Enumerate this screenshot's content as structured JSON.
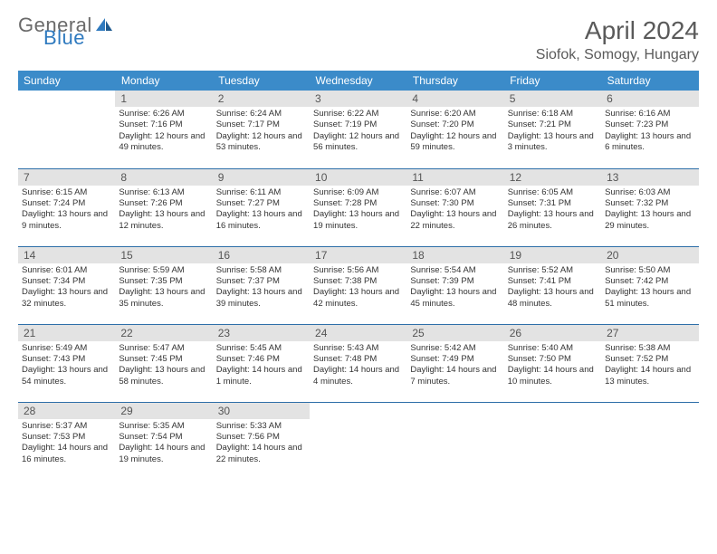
{
  "logo": {
    "word1": "General",
    "word2": "Blue"
  },
  "title": "April 2024",
  "location": "Siofok, Somogy, Hungary",
  "colors": {
    "header_bg": "#3b8bc9",
    "header_text": "#ffffff",
    "daynum_bg": "#e3e3e3",
    "daynum_text": "#555555",
    "border": "#2d6ea8",
    "logo_gray": "#6a6a6a",
    "logo_blue": "#2f7abf",
    "title_color": "#5a5a5a",
    "body_text": "#333333"
  },
  "weekdays": [
    "Sunday",
    "Monday",
    "Tuesday",
    "Wednesday",
    "Thursday",
    "Friday",
    "Saturday"
  ],
  "weeks": [
    [
      null,
      {
        "n": "1",
        "sr": "Sunrise: 6:26 AM",
        "ss": "Sunset: 7:16 PM",
        "dl": "Daylight: 12 hours and 49 minutes."
      },
      {
        "n": "2",
        "sr": "Sunrise: 6:24 AM",
        "ss": "Sunset: 7:17 PM",
        "dl": "Daylight: 12 hours and 53 minutes."
      },
      {
        "n": "3",
        "sr": "Sunrise: 6:22 AM",
        "ss": "Sunset: 7:19 PM",
        "dl": "Daylight: 12 hours and 56 minutes."
      },
      {
        "n": "4",
        "sr": "Sunrise: 6:20 AM",
        "ss": "Sunset: 7:20 PM",
        "dl": "Daylight: 12 hours and 59 minutes."
      },
      {
        "n": "5",
        "sr": "Sunrise: 6:18 AM",
        "ss": "Sunset: 7:21 PM",
        "dl": "Daylight: 13 hours and 3 minutes."
      },
      {
        "n": "6",
        "sr": "Sunrise: 6:16 AM",
        "ss": "Sunset: 7:23 PM",
        "dl": "Daylight: 13 hours and 6 minutes."
      }
    ],
    [
      {
        "n": "7",
        "sr": "Sunrise: 6:15 AM",
        "ss": "Sunset: 7:24 PM",
        "dl": "Daylight: 13 hours and 9 minutes."
      },
      {
        "n": "8",
        "sr": "Sunrise: 6:13 AM",
        "ss": "Sunset: 7:26 PM",
        "dl": "Daylight: 13 hours and 12 minutes."
      },
      {
        "n": "9",
        "sr": "Sunrise: 6:11 AM",
        "ss": "Sunset: 7:27 PM",
        "dl": "Daylight: 13 hours and 16 minutes."
      },
      {
        "n": "10",
        "sr": "Sunrise: 6:09 AM",
        "ss": "Sunset: 7:28 PM",
        "dl": "Daylight: 13 hours and 19 minutes."
      },
      {
        "n": "11",
        "sr": "Sunrise: 6:07 AM",
        "ss": "Sunset: 7:30 PM",
        "dl": "Daylight: 13 hours and 22 minutes."
      },
      {
        "n": "12",
        "sr": "Sunrise: 6:05 AM",
        "ss": "Sunset: 7:31 PM",
        "dl": "Daylight: 13 hours and 26 minutes."
      },
      {
        "n": "13",
        "sr": "Sunrise: 6:03 AM",
        "ss": "Sunset: 7:32 PM",
        "dl": "Daylight: 13 hours and 29 minutes."
      }
    ],
    [
      {
        "n": "14",
        "sr": "Sunrise: 6:01 AM",
        "ss": "Sunset: 7:34 PM",
        "dl": "Daylight: 13 hours and 32 minutes."
      },
      {
        "n": "15",
        "sr": "Sunrise: 5:59 AM",
        "ss": "Sunset: 7:35 PM",
        "dl": "Daylight: 13 hours and 35 minutes."
      },
      {
        "n": "16",
        "sr": "Sunrise: 5:58 AM",
        "ss": "Sunset: 7:37 PM",
        "dl": "Daylight: 13 hours and 39 minutes."
      },
      {
        "n": "17",
        "sr": "Sunrise: 5:56 AM",
        "ss": "Sunset: 7:38 PM",
        "dl": "Daylight: 13 hours and 42 minutes."
      },
      {
        "n": "18",
        "sr": "Sunrise: 5:54 AM",
        "ss": "Sunset: 7:39 PM",
        "dl": "Daylight: 13 hours and 45 minutes."
      },
      {
        "n": "19",
        "sr": "Sunrise: 5:52 AM",
        "ss": "Sunset: 7:41 PM",
        "dl": "Daylight: 13 hours and 48 minutes."
      },
      {
        "n": "20",
        "sr": "Sunrise: 5:50 AM",
        "ss": "Sunset: 7:42 PM",
        "dl": "Daylight: 13 hours and 51 minutes."
      }
    ],
    [
      {
        "n": "21",
        "sr": "Sunrise: 5:49 AM",
        "ss": "Sunset: 7:43 PM",
        "dl": "Daylight: 13 hours and 54 minutes."
      },
      {
        "n": "22",
        "sr": "Sunrise: 5:47 AM",
        "ss": "Sunset: 7:45 PM",
        "dl": "Daylight: 13 hours and 58 minutes."
      },
      {
        "n": "23",
        "sr": "Sunrise: 5:45 AM",
        "ss": "Sunset: 7:46 PM",
        "dl": "Daylight: 14 hours and 1 minute."
      },
      {
        "n": "24",
        "sr": "Sunrise: 5:43 AM",
        "ss": "Sunset: 7:48 PM",
        "dl": "Daylight: 14 hours and 4 minutes."
      },
      {
        "n": "25",
        "sr": "Sunrise: 5:42 AM",
        "ss": "Sunset: 7:49 PM",
        "dl": "Daylight: 14 hours and 7 minutes."
      },
      {
        "n": "26",
        "sr": "Sunrise: 5:40 AM",
        "ss": "Sunset: 7:50 PM",
        "dl": "Daylight: 14 hours and 10 minutes."
      },
      {
        "n": "27",
        "sr": "Sunrise: 5:38 AM",
        "ss": "Sunset: 7:52 PM",
        "dl": "Daylight: 14 hours and 13 minutes."
      }
    ],
    [
      {
        "n": "28",
        "sr": "Sunrise: 5:37 AM",
        "ss": "Sunset: 7:53 PM",
        "dl": "Daylight: 14 hours and 16 minutes."
      },
      {
        "n": "29",
        "sr": "Sunrise: 5:35 AM",
        "ss": "Sunset: 7:54 PM",
        "dl": "Daylight: 14 hours and 19 minutes."
      },
      {
        "n": "30",
        "sr": "Sunrise: 5:33 AM",
        "ss": "Sunset: 7:56 PM",
        "dl": "Daylight: 14 hours and 22 minutes."
      },
      null,
      null,
      null,
      null
    ]
  ]
}
